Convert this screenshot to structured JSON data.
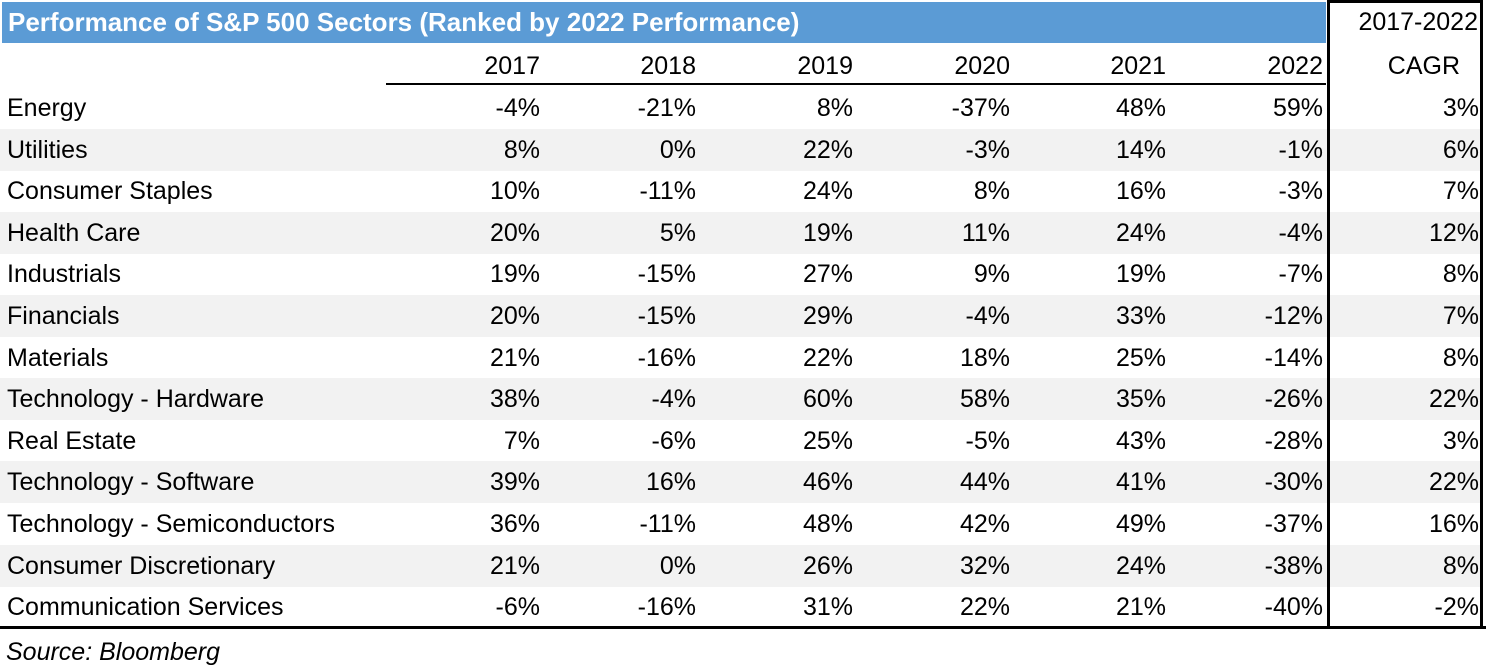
{
  "chart_data": {
    "type": "table",
    "title": "Performance of S&P 500 Sectors (Ranked by 2022 Performance)",
    "cagr_header": [
      "2017-2022",
      "CAGR"
    ],
    "years": [
      "2017",
      "2018",
      "2019",
      "2020",
      "2021",
      "2022"
    ],
    "rows": [
      {
        "sector": "Energy",
        "values": [
          "-4%",
          "-21%",
          "8%",
          "-37%",
          "48%",
          "59%"
        ],
        "cagr": "3%"
      },
      {
        "sector": "Utilities",
        "values": [
          "8%",
          "0%",
          "22%",
          "-3%",
          "14%",
          "-1%"
        ],
        "cagr": "6%"
      },
      {
        "sector": "Consumer Staples",
        "values": [
          "10%",
          "-11%",
          "24%",
          "8%",
          "16%",
          "-3%"
        ],
        "cagr": "7%"
      },
      {
        "sector": "Health Care",
        "values": [
          "20%",
          "5%",
          "19%",
          "11%",
          "24%",
          "-4%"
        ],
        "cagr": "12%"
      },
      {
        "sector": "Industrials",
        "values": [
          "19%",
          "-15%",
          "27%",
          "9%",
          "19%",
          "-7%"
        ],
        "cagr": "8%"
      },
      {
        "sector": "Financials",
        "values": [
          "20%",
          "-15%",
          "29%",
          "-4%",
          "33%",
          "-12%"
        ],
        "cagr": "7%"
      },
      {
        "sector": "Materials",
        "values": [
          "21%",
          "-16%",
          "22%",
          "18%",
          "25%",
          "-14%"
        ],
        "cagr": "8%"
      },
      {
        "sector": "Technology - Hardware",
        "values": [
          "38%",
          "-4%",
          "60%",
          "58%",
          "35%",
          "-26%"
        ],
        "cagr": "22%"
      },
      {
        "sector": "Real Estate",
        "values": [
          "7%",
          "-6%",
          "25%",
          "-5%",
          "43%",
          "-28%"
        ],
        "cagr": "3%"
      },
      {
        "sector": "Technology - Software",
        "values": [
          "39%",
          "16%",
          "46%",
          "44%",
          "41%",
          "-30%"
        ],
        "cagr": "22%"
      },
      {
        "sector": "Technology - Semiconductors",
        "values": [
          "36%",
          "-11%",
          "48%",
          "42%",
          "49%",
          "-37%"
        ],
        "cagr": "16%"
      },
      {
        "sector": "Consumer Discretionary",
        "values": [
          "21%",
          "0%",
          "26%",
          "32%",
          "24%",
          "-38%"
        ],
        "cagr": "8%"
      },
      {
        "sector": "Communication Services",
        "values": [
          "-6%",
          "-16%",
          "31%",
          "22%",
          "21%",
          "-40%"
        ],
        "cagr": "-2%"
      }
    ],
    "source": "Source: Bloomberg"
  },
  "colors": {
    "title_bg": "#5b9bd5",
    "title_text": "#ffffff",
    "shaded_row": "#f2f2f2"
  }
}
